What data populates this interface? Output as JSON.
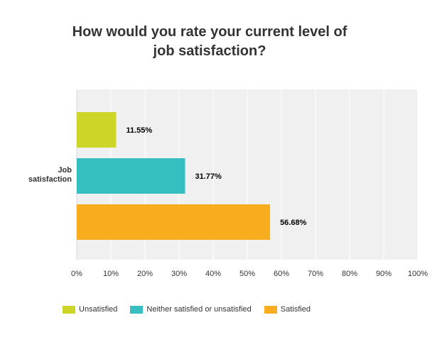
{
  "title_line1": "How would you rate your current level of",
  "title_line2": "job satisfaction?",
  "chart_data": {
    "type": "bar",
    "orientation": "horizontal",
    "title": "How would you rate your current level of job satisfaction?",
    "categories": [
      "Job satisfaction"
    ],
    "category_label_lines": [
      "Job",
      "satisfaction"
    ],
    "series": [
      {
        "name": "Unsatisfied",
        "values": [
          11.55
        ],
        "label": "11.55%",
        "color": "#cdd529"
      },
      {
        "name": "Neither satisfied or unsatisfied",
        "values": [
          31.77
        ],
        "label": "31.77%",
        "color": "#35bfc1"
      },
      {
        "name": "Satisfied",
        "values": [
          56.68
        ],
        "label": "56.68%",
        "color": "#f7ad1d"
      }
    ],
    "xlim": [
      0,
      100
    ],
    "xticks": [
      "0%",
      "10%",
      "20%",
      "30%",
      "40%",
      "50%",
      "60%",
      "70%",
      "80%",
      "90%",
      "100%"
    ],
    "grid": true,
    "legend_position": "bottom"
  }
}
